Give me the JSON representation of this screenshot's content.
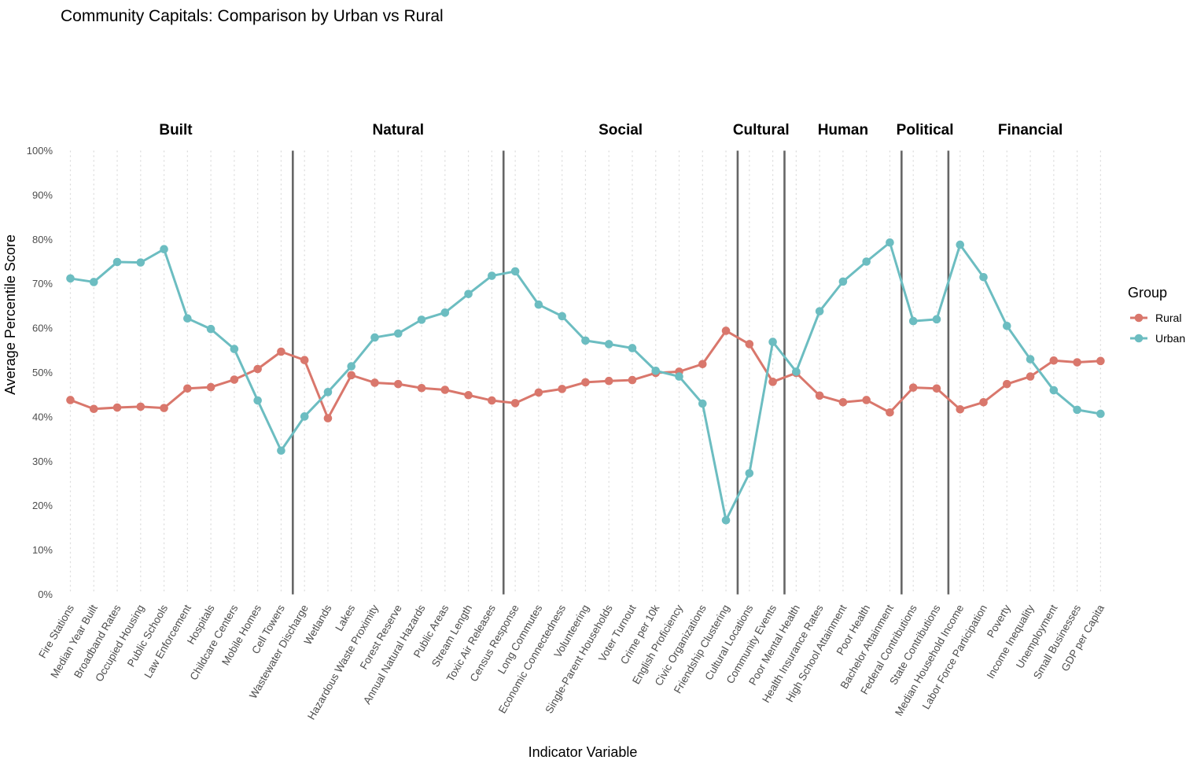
{
  "chart_data": {
    "type": "line",
    "title": "Community Capitals: Comparison by Urban vs Rural",
    "xlabel": "Indicator Variable",
    "ylabel": "Average Percentile Score",
    "ylim": [
      0,
      100
    ],
    "yticks": [
      "0%",
      "10%",
      "20%",
      "30%",
      "40%",
      "50%",
      "60%",
      "70%",
      "80%",
      "90%",
      "100%"
    ],
    "categories": [
      "Fire Stations",
      "Median Year Built",
      "Broadband Rates",
      "Occupied Housing",
      "Public Schools",
      "Law Enforcement",
      "Hospitals",
      "Childcare Centers",
      "Mobile Homes",
      "Cell Towers",
      "Wastewater Discharge",
      "Wetlands",
      "Lakes",
      "Hazardous Waste Proximity",
      "Forest Reserve",
      "Annual Natural Hazards",
      "Public Areas",
      "Stream Length",
      "Toxic Air Releases",
      "Census Response",
      "Long Commutes",
      "Economic Connectedness",
      "Volunteering",
      "Single-Parent Households",
      "Voter Turnout",
      "Crime per 10k",
      "English Proficiency",
      "Civic Organizations",
      "Friendship Clustering",
      "Cultural Locations",
      "Community Events",
      "Poor Mental Health",
      "Health Insurance Rates",
      "High School Attainment",
      "Poor Health",
      "Bachelor Attainment",
      "Federal Contributions",
      "State Contributions",
      "Median Household Income",
      "Labor Force Participation",
      "Poverty",
      "Income Inequality",
      "Unemployment",
      "Small Businesses",
      "GDP per Capita"
    ],
    "groups": [
      {
        "label": "Built",
        "start": 0,
        "end": 9
      },
      {
        "label": "Natural",
        "start": 10,
        "end": 18
      },
      {
        "label": "Social",
        "start": 19,
        "end": 28
      },
      {
        "label": "Cultural",
        "start": 29,
        "end": 30
      },
      {
        "label": "Human",
        "start": 31,
        "end": 35
      },
      {
        "label": "Political",
        "start": 36,
        "end": 37
      },
      {
        "label": "Financial",
        "start": 38,
        "end": 44
      }
    ],
    "series": [
      {
        "name": "Rural",
        "color": "#d9776c",
        "values": [
          43.8,
          41.8,
          42.1,
          42.3,
          42.0,
          46.4,
          46.7,
          48.4,
          50.8,
          54.7,
          52.8,
          39.7,
          49.4,
          47.7,
          47.4,
          46.5,
          46.1,
          44.9,
          43.7,
          43.1,
          45.5,
          46.3,
          47.8,
          48.1,
          48.3,
          49.9,
          50.2,
          51.9,
          59.4,
          56.4,
          47.9,
          49.9,
          44.8,
          43.3,
          43.8,
          41.0,
          46.6,
          46.4,
          41.7,
          43.3,
          47.4,
          49.1,
          52.7,
          52.3,
          52.6
        ]
      },
      {
        "name": "Urban",
        "color": "#6cbdc1",
        "values": [
          71.2,
          70.4,
          74.9,
          74.8,
          77.8,
          62.2,
          59.8,
          55.3,
          43.7,
          32.4,
          40.1,
          45.6,
          51.4,
          57.9,
          58.8,
          61.9,
          63.5,
          67.7,
          71.8,
          72.8,
          65.3,
          62.7,
          57.2,
          56.4,
          55.5,
          50.4,
          49.1,
          43.0,
          16.7,
          27.3,
          56.9,
          50.2,
          63.8,
          70.5,
          75.0,
          79.3,
          61.6,
          62.0,
          78.8,
          71.5,
          60.5,
          53.0,
          46.0,
          41.6,
          40.7
        ]
      }
    ],
    "legend": {
      "title": "Group",
      "position": "right"
    }
  }
}
